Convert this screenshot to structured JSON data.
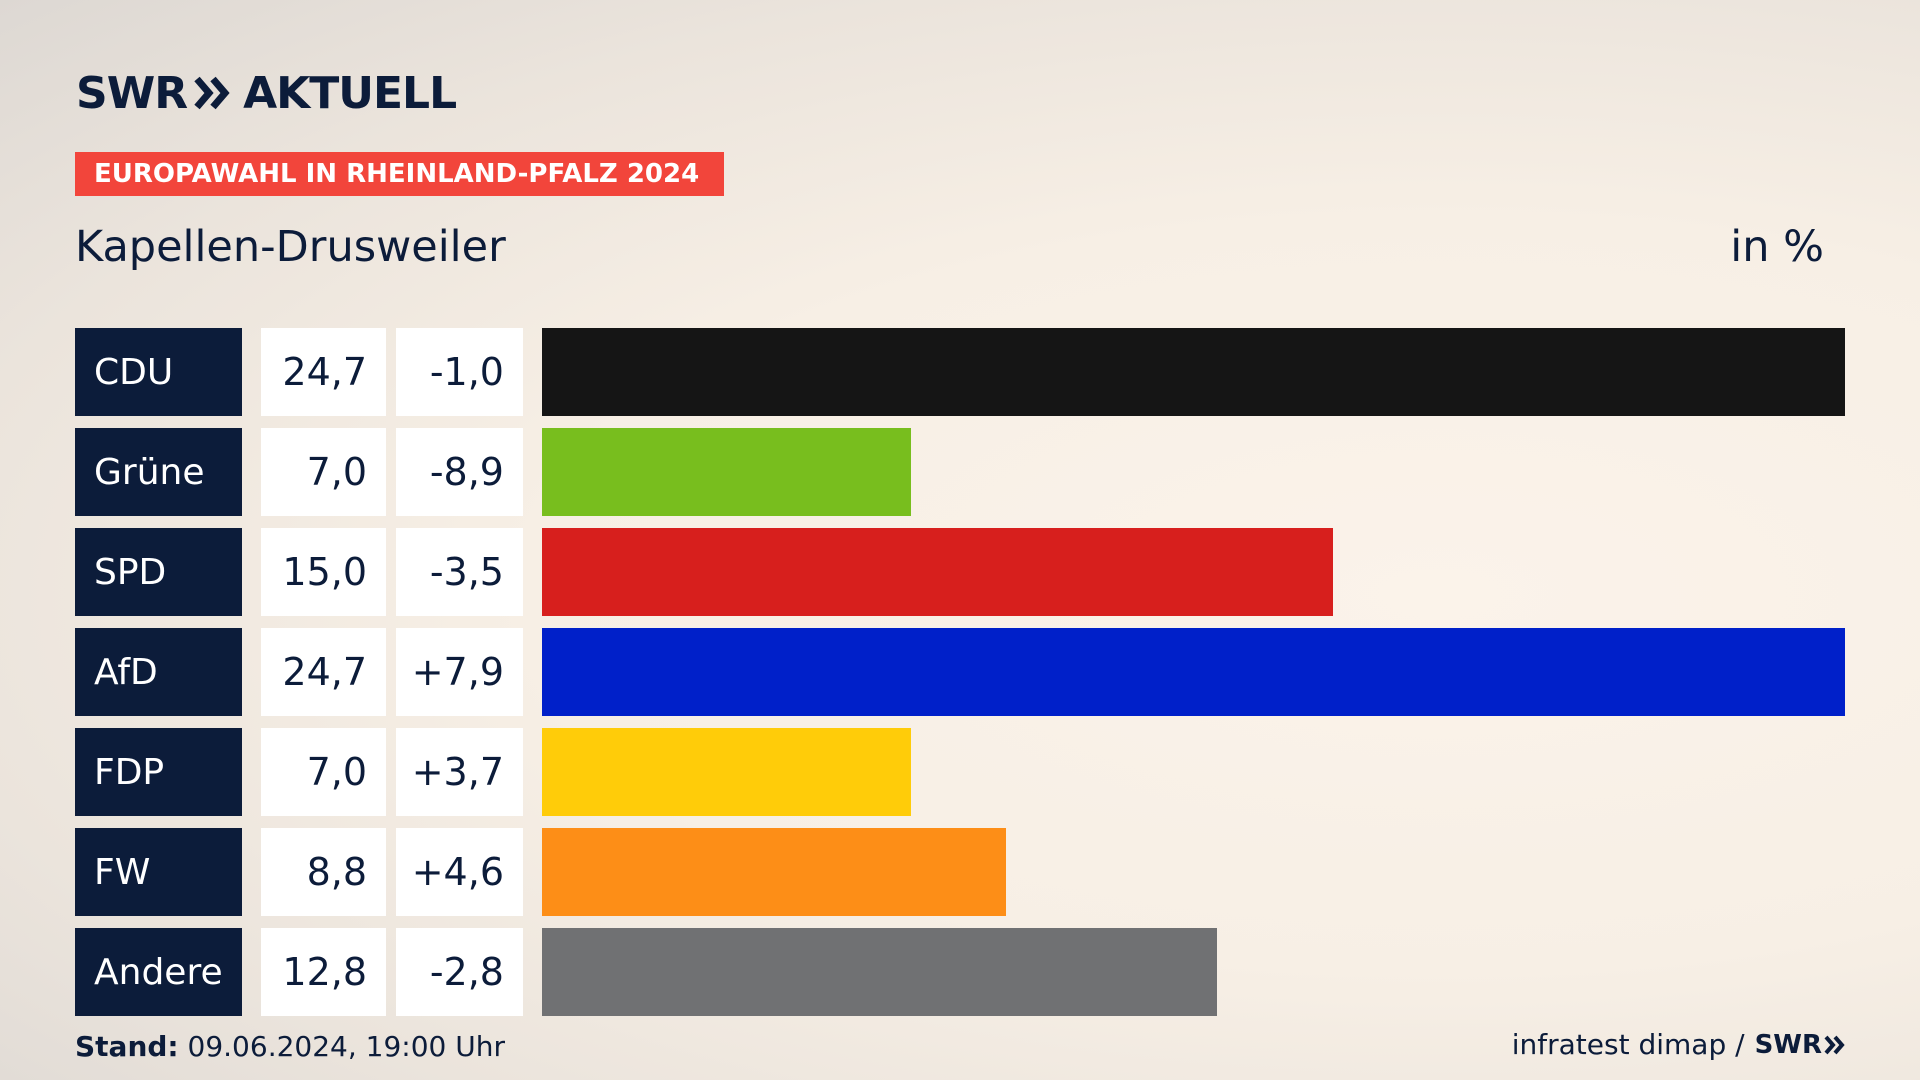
{
  "header": {
    "logo_brand": "SWR",
    "logo_word": "AKTUELL",
    "banner": "EUROPAWAHL IN RHEINLAND-PFALZ 2024",
    "region": "Kapellen-Drusweiler",
    "unit": "in %"
  },
  "footer": {
    "stand_label": "Stand:",
    "stand_value": "09.06.2024, 19:00 Uhr",
    "source": "infratest dimap /",
    "source_logo": "SWR"
  },
  "chart_data": {
    "type": "bar",
    "orientation": "horizontal",
    "categories": [
      "CDU",
      "Grüne",
      "SPD",
      "AfD",
      "FDP",
      "FW",
      "Andere"
    ],
    "values": [
      24.7,
      7.0,
      15.0,
      24.7,
      7.0,
      8.8,
      12.8
    ],
    "value_labels": [
      "24,7",
      "7,0",
      "15,0",
      "24,7",
      "7,0",
      "8,8",
      "12,8"
    ],
    "changes": [
      "-1,0",
      "-8,9",
      "-3,5",
      "+7,9",
      "+3,7",
      "+4,6",
      "-2,8"
    ],
    "colors": [
      "#151515",
      "#78be1e",
      "#d71f1d",
      "#0020c9",
      "#ffcc09",
      "#fd8e17",
      "#707173"
    ],
    "xlim": [
      0,
      24.7
    ],
    "unit": "in %"
  }
}
